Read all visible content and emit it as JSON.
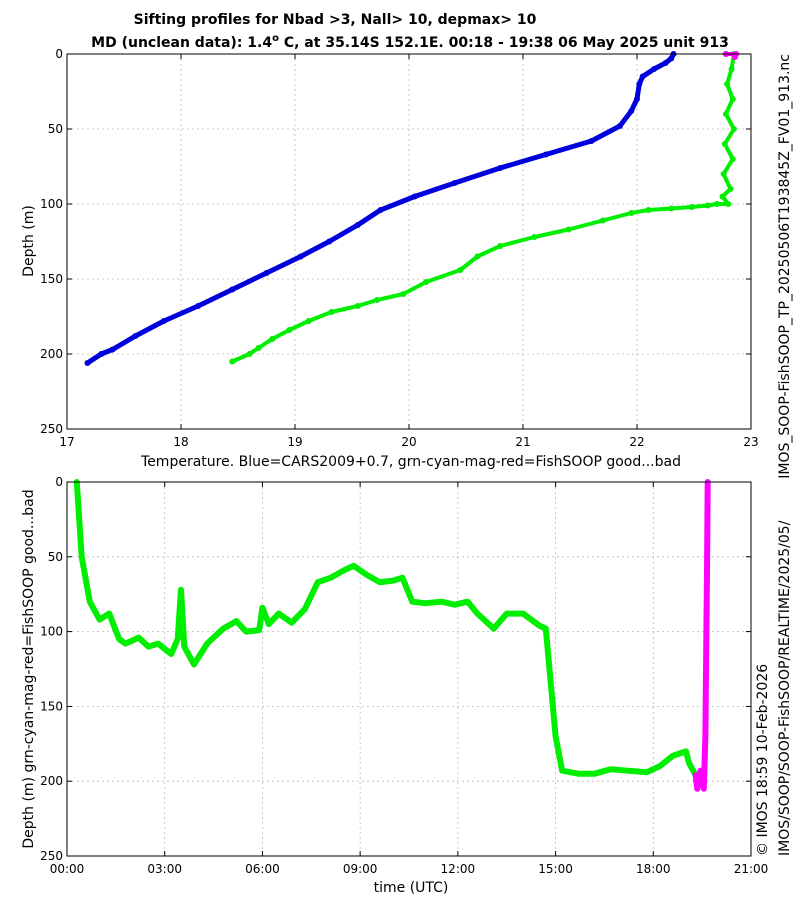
{
  "header": {
    "title_line1": "Sifting profiles for Nbad >3, Nall> 10, depmax> 10",
    "title_line2_pre": "MD (unclean data): 1.4",
    "title_line2_deg": "o",
    "title_line2_post": " C, at 35.14S 152.1E. 00:18 - 19:38 06 May 2025 unit 913"
  },
  "side_text": {
    "filename": "IMOS_SOOP-FishSOOP_TP_20250506T193845Z_FV01_913.nc",
    "copyright": "© IMOS 18:59 10-Feb-2026",
    "path": "IMOS/SOOP/SOOP-FishSOOP/REALTIME/2025/05/"
  },
  "colors": {
    "cars": "#0000dd",
    "good": "#00ee00",
    "bad": "#ff00ff",
    "grid": "#bbbbbb"
  },
  "chart_data": [
    {
      "type": "scatter",
      "xlabel": "Temperature. Blue=CARS2009+0.7, grn-cyan-mag-red=FishSOOP good...bad",
      "ylabel": "Depth (m)",
      "xlim": [
        17,
        23
      ],
      "ylim": [
        0,
        250
      ],
      "y_reversed": true,
      "grid": true,
      "xticks": [
        "17",
        "18",
        "19",
        "20",
        "21",
        "22",
        "23"
      ],
      "yticks": [
        "0",
        "50",
        "100",
        "150",
        "200",
        "250"
      ],
      "series": [
        {
          "color_key": "cars",
          "points": [
            [
              22.32,
              0
            ],
            [
              22.3,
              3
            ],
            [
              22.25,
              6
            ],
            [
              22.15,
              10
            ],
            [
              22.05,
              15
            ],
            [
              22.02,
              20
            ],
            [
              22.0,
              30
            ],
            [
              21.95,
              38
            ],
            [
              21.85,
              48
            ],
            [
              21.6,
              58
            ],
            [
              21.2,
              67
            ],
            [
              20.8,
              76
            ],
            [
              20.4,
              86
            ],
            [
              20.05,
              95
            ],
            [
              19.75,
              104
            ],
            [
              19.55,
              114
            ],
            [
              19.3,
              125
            ],
            [
              19.05,
              135
            ],
            [
              18.75,
              146
            ],
            [
              18.45,
              157
            ],
            [
              18.15,
              168
            ],
            [
              17.85,
              178
            ],
            [
              17.6,
              188
            ],
            [
              17.4,
              197
            ],
            [
              17.3,
              200
            ],
            [
              17.18,
              206
            ]
          ]
        },
        {
          "color_key": "good",
          "points": [
            [
              22.78,
              0
            ],
            [
              22.85,
              0
            ],
            [
              22.83,
              10
            ],
            [
              22.79,
              20
            ],
            [
              22.84,
              30
            ],
            [
              22.78,
              40
            ],
            [
              22.85,
              50
            ],
            [
              22.77,
              60
            ],
            [
              22.84,
              70
            ],
            [
              22.76,
              80
            ],
            [
              22.82,
              90
            ],
            [
              22.75,
              95
            ],
            [
              22.8,
              100
            ],
            [
              22.7,
              100
            ],
            [
              22.62,
              101
            ],
            [
              22.48,
              102
            ],
            [
              22.3,
              103
            ],
            [
              22.1,
              104
            ],
            [
              21.95,
              106
            ],
            [
              21.7,
              111
            ],
            [
              21.4,
              117
            ],
            [
              21.1,
              122
            ],
            [
              20.8,
              128
            ],
            [
              20.6,
              135
            ],
            [
              20.45,
              144
            ],
            [
              20.15,
              152
            ],
            [
              19.95,
              160
            ],
            [
              19.72,
              164
            ],
            [
              19.55,
              168
            ],
            [
              19.32,
              172
            ],
            [
              19.12,
              178
            ],
            [
              18.95,
              184
            ],
            [
              18.8,
              190
            ],
            [
              18.68,
              196
            ],
            [
              18.6,
              200
            ],
            [
              18.45,
              205
            ]
          ]
        },
        {
          "color_key": "bad",
          "points": [
            [
              22.78,
              0
            ],
            [
              22.87,
              0
            ],
            [
              22.86,
              2
            ]
          ]
        }
      ]
    },
    {
      "type": "line",
      "xlabel": "time (UTC)",
      "ylabel": "Depth (m) grn-cyan-mag-red=FishSOOP good...bad",
      "xlim": [
        0,
        21
      ],
      "ylim": [
        0,
        250
      ],
      "y_reversed": true,
      "grid": true,
      "xticks": [
        "00:00",
        "03:00",
        "06:00",
        "09:00",
        "12:00",
        "15:00",
        "18:00",
        "21:00"
      ],
      "yticks": [
        "0",
        "50",
        "100",
        "150",
        "200",
        "250"
      ],
      "series": [
        {
          "color_key": "good",
          "points": [
            [
              0.3,
              0
            ],
            [
              0.45,
              50
            ],
            [
              0.7,
              80
            ],
            [
              1.0,
              92
            ],
            [
              1.3,
              88
            ],
            [
              1.6,
              105
            ],
            [
              1.8,
              108
            ],
            [
              2.2,
              104
            ],
            [
              2.5,
              110
            ],
            [
              2.8,
              108
            ],
            [
              3.2,
              115
            ],
            [
              3.4,
              105
            ],
            [
              3.5,
              72
            ],
            [
              3.6,
              110
            ],
            [
              3.9,
              122
            ],
            [
              4.3,
              108
            ],
            [
              4.8,
              98
            ],
            [
              5.2,
              93
            ],
            [
              5.5,
              100
            ],
            [
              5.9,
              99
            ],
            [
              6.0,
              84
            ],
            [
              6.2,
              95
            ],
            [
              6.5,
              88
            ],
            [
              6.9,
              94
            ],
            [
              7.3,
              85
            ],
            [
              7.7,
              67
            ],
            [
              8.1,
              64
            ],
            [
              8.5,
              59
            ],
            [
              8.8,
              56
            ],
            [
              9.2,
              62
            ],
            [
              9.6,
              67
            ],
            [
              10.0,
              66
            ],
            [
              10.3,
              64
            ],
            [
              10.6,
              80
            ],
            [
              11.0,
              81
            ],
            [
              11.5,
              80
            ],
            [
              11.9,
              82
            ],
            [
              12.3,
              80
            ],
            [
              12.6,
              88
            ],
            [
              13.1,
              98
            ],
            [
              13.5,
              88
            ],
            [
              14.0,
              88
            ],
            [
              14.5,
              96
            ],
            [
              14.7,
              98
            ],
            [
              15.0,
              170
            ],
            [
              15.2,
              193
            ],
            [
              15.7,
              195
            ],
            [
              16.2,
              195
            ],
            [
              16.7,
              192
            ],
            [
              17.2,
              193
            ],
            [
              17.8,
              194
            ],
            [
              18.2,
              190
            ],
            [
              18.6,
              183
            ],
            [
              19.0,
              180
            ],
            [
              19.1,
              188
            ],
            [
              19.3,
              196
            ]
          ]
        },
        {
          "color_key": "bad",
          "points": [
            [
              19.3,
              196
            ],
            [
              19.35,
              205
            ],
            [
              19.45,
              193
            ],
            [
              19.55,
              205
            ],
            [
              19.6,
              170
            ],
            [
              19.62,
              120
            ],
            [
              19.65,
              60
            ],
            [
              19.67,
              0
            ]
          ]
        }
      ]
    }
  ]
}
